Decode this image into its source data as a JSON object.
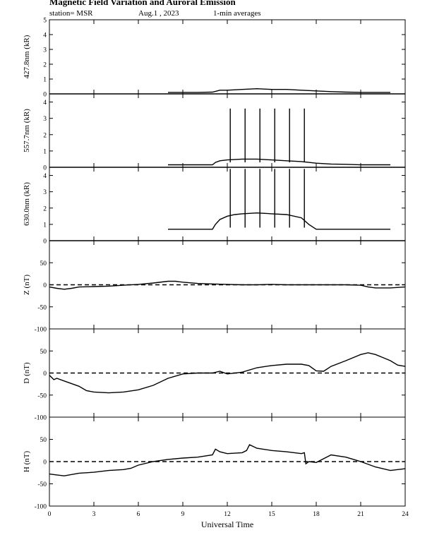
{
  "header": {
    "title": "Magnetic Field Variation and Auroral Emission",
    "station": "station= MSR",
    "date": "Aug.1  , 2023",
    "averages": "1-min averages"
  },
  "chart_data": {
    "type": "line",
    "xlabel": "Universal Time",
    "xlim": [
      0,
      24
    ],
    "xticks": [
      0,
      3,
      6,
      9,
      12,
      15,
      18,
      21,
      24
    ],
    "panels": [
      {
        "id": "4278",
        "ylabel": "427.8nm (kR)",
        "ylim": [
          0,
          5
        ],
        "yticks": [
          0,
          1,
          2,
          3,
          4,
          5
        ],
        "zero_line": "solid",
        "series": [
          {
            "x": [
              8,
              9,
              10,
              11,
              11.5,
              12,
              13,
              14,
              15,
              16,
              17,
              18,
              19,
              20,
              21,
              22,
              23
            ],
            "y": [
              0.1,
              0.1,
              0.1,
              0.12,
              0.25,
              0.25,
              0.3,
              0.35,
              0.3,
              0.3,
              0.25,
              0.2,
              0.15,
              0.12,
              0.1,
              0.1,
              0.1
            ]
          }
        ]
      },
      {
        "id": "5577",
        "ylabel": "557.7nm (kR)",
        "ylim": [
          0,
          4.5
        ],
        "yticks": [
          0,
          1,
          2,
          3,
          4
        ],
        "zero_line": "solid",
        "series": [
          {
            "x": [
              8,
              9,
              10,
              11,
              11.2,
              11.5,
              12,
              13,
              14,
              15,
              16,
              17,
              18,
              19,
              20,
              21,
              22,
              23
            ],
            "y": [
              0.15,
              0.15,
              0.15,
              0.15,
              0.3,
              0.4,
              0.45,
              0.5,
              0.5,
              0.45,
              0.4,
              0.35,
              0.25,
              0.2,
              0.18,
              0.15,
              0.15,
              0.15
            ]
          }
        ],
        "spikes": {
          "x": [
            12.2,
            13.2,
            14.2,
            15.2,
            16.2,
            17.2
          ],
          "y": 3.6
        }
      },
      {
        "id": "6300",
        "ylabel": "630.0nm (kR)",
        "ylim": [
          0,
          4.5
        ],
        "yticks": [
          0,
          1,
          2,
          3,
          4
        ],
        "zero_line": "solid",
        "series": [
          {
            "x": [
              8,
              9,
              10,
              11,
              11.2,
              11.5,
              12,
              12.5,
              13,
              14,
              15,
              16,
              17,
              17.5,
              18,
              19,
              20,
              21,
              22,
              23
            ],
            "y": [
              0.7,
              0.7,
              0.7,
              0.7,
              1.0,
              1.3,
              1.5,
              1.6,
              1.65,
              1.7,
              1.65,
              1.6,
              1.4,
              1.0,
              0.7,
              0.7,
              0.7,
              0.7,
              0.7,
              0.7
            ]
          }
        ],
        "spikes": {
          "x": [
            12.2,
            13.2,
            14.2,
            15.2,
            16.2,
            17.2
          ],
          "y": 4.4,
          "base": 0.8
        }
      },
      {
        "id": "z",
        "ylabel": "Z (nT)",
        "ylim": [
          -100,
          100
        ],
        "yticks": [
          -100,
          -50,
          0,
          50
        ],
        "zero_line": "dashed",
        "series": [
          {
            "x": [
              0,
              0.5,
              1,
              1.5,
              2,
              3,
              4,
              5,
              6,
              7,
              8,
              8.5,
              9,
              10,
              11,
              12,
              13,
              14,
              15,
              16,
              17,
              18,
              19,
              20,
              21,
              21.5,
              22,
              23,
              24
            ],
            "y": [
              -5,
              -8,
              -10,
              -8,
              -5,
              -4,
              -3,
              -1,
              1,
              4,
              8,
              8,
              6,
              3,
              2,
              1,
              0,
              0,
              1,
              0,
              0,
              0,
              0,
              0,
              -1,
              -5,
              -7,
              -7,
              -5
            ]
          }
        ]
      },
      {
        "id": "d",
        "ylabel": "D (nT)",
        "ylim": [
          -100,
          100
        ],
        "yticks": [
          -100,
          -50,
          0,
          50
        ],
        "zero_line": "dashed",
        "series": [
          {
            "x": [
              0,
              0.3,
              0.5,
              1,
              2,
              2.5,
              3,
              4,
              5,
              6,
              7,
              8,
              9,
              10,
              11,
              11.5,
              12,
              13,
              14,
              15,
              16,
              17,
              17.5,
              18,
              18.5,
              19,
              20,
              21,
              21.5,
              22,
              22.5,
              23,
              23.5,
              24
            ],
            "y": [
              -5,
              -15,
              -12,
              -18,
              -30,
              -40,
              -43,
              -45,
              -43,
              -38,
              -28,
              -12,
              -2,
              0,
              0,
              4,
              -2,
              2,
              12,
              17,
              20,
              20,
              17,
              5,
              4,
              15,
              28,
              42,
              46,
              42,
              35,
              28,
              18,
              15
            ]
          }
        ]
      },
      {
        "id": "h",
        "ylabel": "H (nT)",
        "ylim": [
          -100,
          100
        ],
        "yticks": [
          -100,
          -50,
          0,
          50
        ],
        "zero_line": "dashed",
        "series": [
          {
            "x": [
              0,
              0.5,
              1,
              2,
              3,
              4,
              5,
              5.5,
              6,
              7,
              8,
              9,
              10,
              11,
              11.2,
              11.5,
              12,
              13,
              13.3,
              13.5,
              14,
              15,
              16,
              17,
              17.2,
              17.3,
              17.5,
              18,
              19,
              20,
              21,
              22,
              23,
              24
            ],
            "y": [
              -28,
              -30,
              -32,
              -26,
              -24,
              -20,
              -18,
              -15,
              -8,
              0,
              5,
              8,
              10,
              15,
              28,
              22,
              18,
              20,
              25,
              38,
              30,
              25,
              22,
              18,
              20,
              -5,
              0,
              -2,
              15,
              10,
              0,
              -12,
              -20,
              -16
            ]
          }
        ]
      }
    ]
  }
}
